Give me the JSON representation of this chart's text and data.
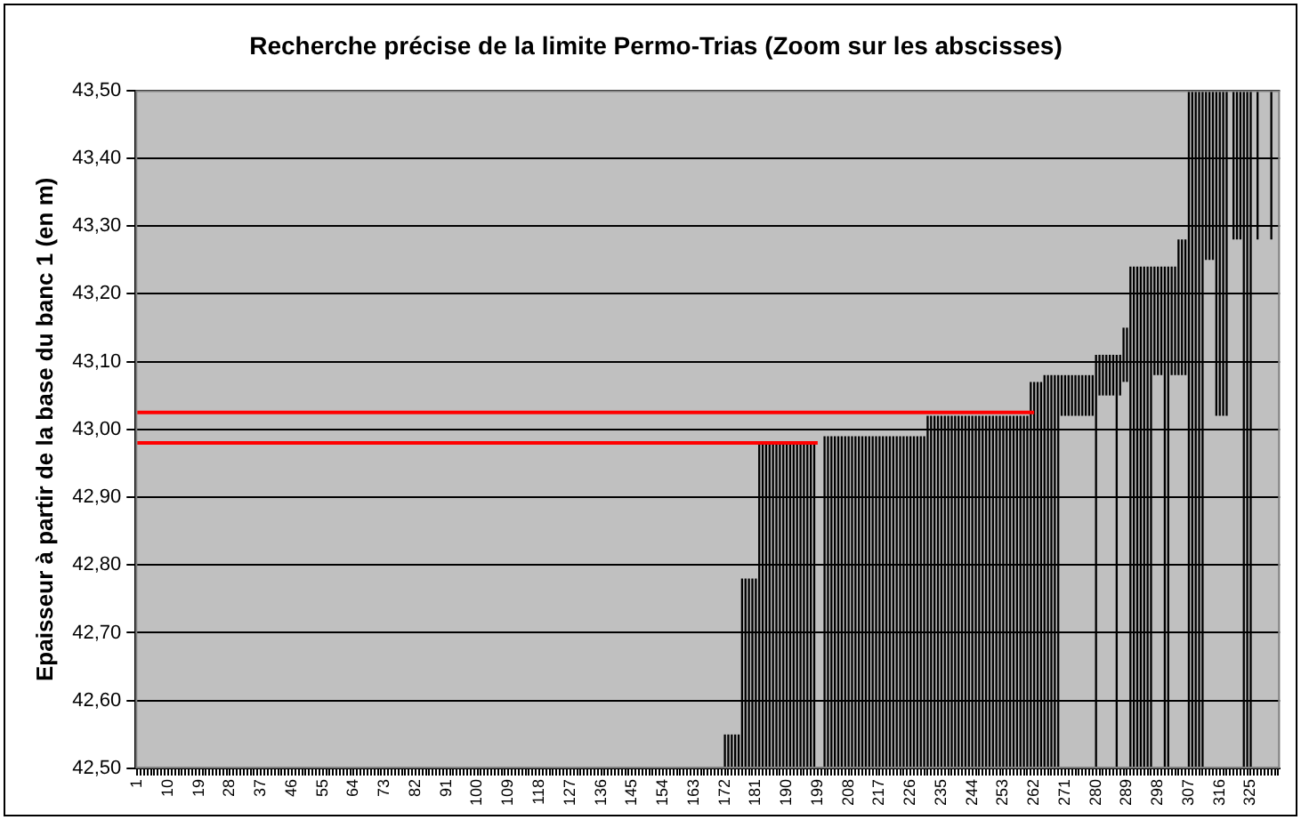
{
  "chart_data": {
    "type": "bar",
    "title": "Recherche précise de la limite Permo-Trias (Zoom sur les abscisses)",
    "ylabel": "Epaisseur à partir de la base du banc 1 (en m)",
    "categories": [
      "1",
      null,
      null,
      null,
      null,
      null,
      null,
      null,
      null,
      "10",
      null,
      null,
      null,
      null,
      null,
      null,
      null,
      null,
      "19",
      null,
      null,
      null,
      null,
      null,
      null,
      null,
      null,
      "28",
      null,
      null,
      null,
      null,
      null,
      null,
      null,
      null,
      "37",
      null,
      null,
      null,
      null,
      null,
      null,
      null,
      null,
      "46",
      null,
      null,
      null,
      null,
      null,
      null,
      null,
      null,
      "55",
      null,
      null,
      null,
      null,
      null,
      null,
      null,
      null,
      "64",
      null,
      null,
      null,
      null,
      null,
      null,
      null,
      null,
      "73",
      null,
      null,
      null,
      null,
      null,
      null,
      null,
      null,
      "82",
      null,
      null,
      null,
      null,
      null,
      null,
      null,
      null,
      "91",
      null,
      null,
      null,
      null,
      null,
      null,
      null,
      null,
      "100",
      null,
      null,
      null,
      null,
      null,
      null,
      null,
      null,
      "109",
      null,
      null,
      null,
      null,
      null,
      null,
      null,
      null,
      "118",
      null,
      null,
      null,
      null,
      null,
      null,
      null,
      null,
      "127",
      null,
      null,
      null,
      null,
      null,
      null,
      null,
      null,
      "136",
      null,
      null,
      null,
      null,
      null,
      null,
      null,
      null,
      "145",
      null,
      null,
      null,
      null,
      null,
      null,
      null,
      null,
      "154",
      null,
      null,
      null,
      null,
      null,
      null,
      null,
      null,
      "163",
      null,
      null,
      null,
      null,
      null,
      null,
      null,
      null,
      "172",
      null,
      null,
      null,
      null,
      null,
      null,
      null,
      null,
      "181",
      null,
      null,
      null,
      null,
      null,
      null,
      null,
      null,
      "190",
      null,
      null,
      null,
      null,
      null,
      null,
      null,
      null,
      "199",
      null,
      null,
      null,
      null,
      null,
      null,
      null,
      null,
      "208",
      null,
      null,
      null,
      null,
      null,
      null,
      null,
      null,
      "217",
      null,
      null,
      null,
      null,
      null,
      null,
      null,
      null,
      "226",
      null,
      null,
      null,
      null,
      null,
      null,
      null,
      null,
      "235",
      null,
      null,
      null,
      null,
      null,
      null,
      null,
      null,
      "244",
      null,
      null,
      null,
      null,
      null,
      null,
      null,
      null,
      "253",
      null,
      null,
      null,
      null,
      null,
      null,
      null,
      null,
      "262",
      null,
      null,
      null,
      null,
      null,
      null,
      null,
      null,
      "271",
      null,
      null,
      null,
      null,
      null,
      null,
      null,
      null,
      "280",
      null,
      null,
      null,
      null,
      null,
      null,
      null,
      null,
      "289",
      null,
      null,
      null,
      null,
      null,
      null,
      null,
      null,
      "298",
      null,
      null,
      null,
      null,
      null,
      null,
      null,
      null,
      "307",
      null,
      null,
      null,
      null,
      null,
      null,
      null,
      null,
      "316",
      null,
      null,
      null,
      null,
      null,
      null,
      null,
      null,
      "325",
      null,
      null,
      null,
      null,
      null,
      null,
      null,
      null
    ],
    "series": [
      {
        "color": "#000000",
        "values": [
          null,
          null,
          null,
          null,
          null,
          null,
          null,
          null,
          null,
          null,
          null,
          null,
          null,
          null,
          null,
          null,
          null,
          null,
          null,
          null,
          null,
          null,
          null,
          null,
          null,
          null,
          null,
          null,
          null,
          null,
          null,
          null,
          null,
          null,
          null,
          null,
          null,
          null,
          null,
          null,
          null,
          null,
          null,
          null,
          null,
          null,
          null,
          null,
          null,
          null,
          null,
          null,
          null,
          null,
          null,
          null,
          null,
          null,
          null,
          null,
          null,
          null,
          null,
          null,
          null,
          null,
          null,
          null,
          null,
          null,
          null,
          null,
          null,
          null,
          null,
          null,
          null,
          null,
          null,
          null,
          null,
          null,
          null,
          null,
          null,
          null,
          null,
          null,
          null,
          null,
          null,
          null,
          null,
          null,
          null,
          null,
          null,
          null,
          null,
          null,
          null,
          null,
          null,
          null,
          null,
          null,
          null,
          null,
          null,
          null,
          null,
          null,
          null,
          null,
          null,
          null,
          null,
          null,
          null,
          null,
          null,
          null,
          null,
          null,
          null,
          null,
          null,
          null,
          null,
          null,
          null,
          null,
          null,
          null,
          null,
          null,
          null,
          null,
          null,
          null,
          null,
          null,
          null,
          null,
          null,
          null,
          null,
          null,
          null,
          null,
          null,
          null,
          null,
          null,
          null,
          null,
          null,
          null,
          null,
          null,
          null,
          null,
          null,
          null,
          null,
          null,
          null,
          null,
          null,
          null,
          null,
          0.05,
          0.05,
          0.05,
          0.05,
          0.05,
          0.28,
          0.28,
          0.28,
          0.28,
          0.28,
          0.48,
          0.48,
          0.48,
          0.48,
          0.48,
          0.48,
          0.48,
          0.48,
          0.48,
          0.48,
          0.48,
          0.48,
          0.48,
          0.48,
          0.48,
          0.48,
          0.48,
          null,
          null,
          0.49,
          0.49,
          0.49,
          0.49,
          0.49,
          0.49,
          0.49,
          0.49,
          0.49,
          0.49,
          0.49,
          0.49,
          0.49,
          0.49,
          0.49,
          0.49,
          0.49,
          0.49,
          0.49,
          0.49,
          0.49,
          0.49,
          0.49,
          0.49,
          0.49,
          0.49,
          0.49,
          0.49,
          0.49,
          0.49,
          0.52,
          0.52,
          0.52,
          0.52,
          0.52,
          0.52,
          0.52,
          0.52,
          0.52,
          0.52,
          0.52,
          0.52,
          0.52,
          0.52,
          0.52,
          0.52,
          0.52,
          0.52,
          0.52,
          0.52,
          0.52,
          0.52,
          0.52,
          0.52,
          0.52,
          0.52,
          0.52,
          0.52,
          0.52,
          0.52,
          0.57,
          0.57,
          0.57,
          0.57,
          0.58,
          0.58,
          0.58,
          0.58,
          0.58,
          0.06,
          0.06,
          0.06,
          0.06,
          0.06,
          0.06,
          0.06,
          0.06,
          0.06,
          0.06,
          0.61,
          0.06,
          0.06,
          0.06,
          0.06,
          0.06,
          0.61,
          0.06,
          0.08,
          0.08,
          0.74,
          0.74,
          0.74,
          0.74,
          0.74,
          0.74,
          0.74,
          0.16,
          0.16,
          0.16,
          0.74,
          0.74,
          0.16,
          0.16,
          0.2,
          0.2,
          0.2,
          1.0,
          1.0,
          1.0,
          1.0,
          1.0,
          0.25,
          0.25,
          0.25,
          0.48,
          0.48,
          0.48,
          0.48,
          null,
          0.22,
          0.22,
          0.22,
          1.0,
          1.0,
          1.0,
          null,
          0.22,
          null,
          null,
          null,
          0.22,
          null,
          null
        ],
        "base": [
          null,
          null,
          null,
          null,
          null,
          null,
          null,
          null,
          null,
          null,
          null,
          null,
          null,
          null,
          null,
          null,
          null,
          null,
          null,
          null,
          null,
          null,
          null,
          null,
          null,
          null,
          null,
          null,
          null,
          null,
          null,
          null,
          null,
          null,
          null,
          null,
          null,
          null,
          null,
          null,
          null,
          null,
          null,
          null,
          null,
          null,
          null,
          null,
          null,
          null,
          null,
          null,
          null,
          null,
          null,
          null,
          null,
          null,
          null,
          null,
          null,
          null,
          null,
          null,
          null,
          null,
          null,
          null,
          null,
          null,
          null,
          null,
          null,
          null,
          null,
          null,
          null,
          null,
          null,
          null,
          null,
          null,
          null,
          null,
          null,
          null,
          null,
          null,
          null,
          null,
          null,
          null,
          null,
          null,
          null,
          null,
          null,
          null,
          null,
          null,
          null,
          null,
          null,
          null,
          null,
          null,
          null,
          null,
          null,
          null,
          null,
          null,
          null,
          null,
          null,
          null,
          null,
          null,
          null,
          null,
          null,
          null,
          null,
          null,
          null,
          null,
          null,
          null,
          null,
          null,
          null,
          null,
          null,
          null,
          null,
          null,
          null,
          null,
          null,
          null,
          null,
          null,
          null,
          null,
          null,
          null,
          null,
          null,
          null,
          null,
          null,
          null,
          null,
          null,
          null,
          null,
          null,
          null,
          null,
          null,
          null,
          null,
          null,
          null,
          null,
          null,
          null,
          null,
          null,
          null,
          null,
          42.5,
          42.5,
          42.5,
          42.5,
          42.5,
          42.5,
          42.5,
          42.5,
          42.5,
          42.5,
          42.5,
          42.5,
          42.5,
          42.5,
          42.5,
          42.5,
          42.5,
          42.5,
          42.5,
          42.5,
          42.5,
          42.5,
          42.5,
          42.5,
          42.5,
          42.5,
          42.5,
          null,
          null,
          42.5,
          42.5,
          42.5,
          42.5,
          42.5,
          42.5,
          42.5,
          42.5,
          42.5,
          42.5,
          42.5,
          42.5,
          42.5,
          42.5,
          42.5,
          42.5,
          42.5,
          42.5,
          42.5,
          42.5,
          42.5,
          42.5,
          42.5,
          42.5,
          42.5,
          42.5,
          42.5,
          42.5,
          42.5,
          42.5,
          42.5,
          42.5,
          42.5,
          42.5,
          42.5,
          42.5,
          42.5,
          42.5,
          42.5,
          42.5,
          42.5,
          42.5,
          42.5,
          42.5,
          42.5,
          42.5,
          42.5,
          42.5,
          42.5,
          42.5,
          42.5,
          42.5,
          42.5,
          42.5,
          42.5,
          42.5,
          42.5,
          42.5,
          42.5,
          42.5,
          42.5,
          42.5,
          42.5,
          42.5,
          42.5,
          42.5,
          42.5,
          42.5,
          42.5,
          43.02,
          43.02,
          43.02,
          43.02,
          43.02,
          43.02,
          43.02,
          43.02,
          43.02,
          43.02,
          42.5,
          43.05,
          43.05,
          43.05,
          43.05,
          43.05,
          42.5,
          43.05,
          43.07,
          43.07,
          42.5,
          42.5,
          42.5,
          42.5,
          42.5,
          42.5,
          42.5,
          43.08,
          43.08,
          43.08,
          42.5,
          42.5,
          43.08,
          43.08,
          43.08,
          43.08,
          43.08,
          42.5,
          42.5,
          42.5,
          42.5,
          42.5,
          43.25,
          43.25,
          43.25,
          43.02,
          43.02,
          43.02,
          43.02,
          null,
          43.28,
          43.28,
          43.28,
          42.5,
          42.5,
          42.5,
          null,
          43.28,
          null,
          null,
          null,
          43.28,
          null,
          null
        ]
      },
      {
        "type": "line",
        "color": "#ff0000",
        "x": [
          "1",
          "199"
        ],
        "values": [
          42.98,
          42.98
        ]
      },
      {
        "type": "line",
        "color": "#ff0000",
        "x": [
          "1",
          "262"
        ],
        "values": [
          43.025,
          43.025
        ]
      }
    ],
    "ylim": [
      42.5,
      43.5
    ],
    "yticks": [
      {
        "value": 42.5,
        "label": "42,50"
      },
      {
        "value": 42.6,
        "label": "42,60"
      },
      {
        "value": 42.7,
        "label": "42,70"
      },
      {
        "value": 42.8,
        "label": "42,80"
      },
      {
        "value": 42.9,
        "label": "42,90"
      },
      {
        "value": 43.0,
        "label": "43,00"
      },
      {
        "value": 43.1,
        "label": "43,10"
      },
      {
        "value": 43.2,
        "label": "43,20"
      },
      {
        "value": 43.3,
        "label": "43,30"
      },
      {
        "value": 43.4,
        "label": "43,40"
      },
      {
        "value": 43.5,
        "label": "43,50"
      }
    ],
    "grid": "y",
    "legend": false,
    "marker": "none",
    "line_style": "solid"
  }
}
